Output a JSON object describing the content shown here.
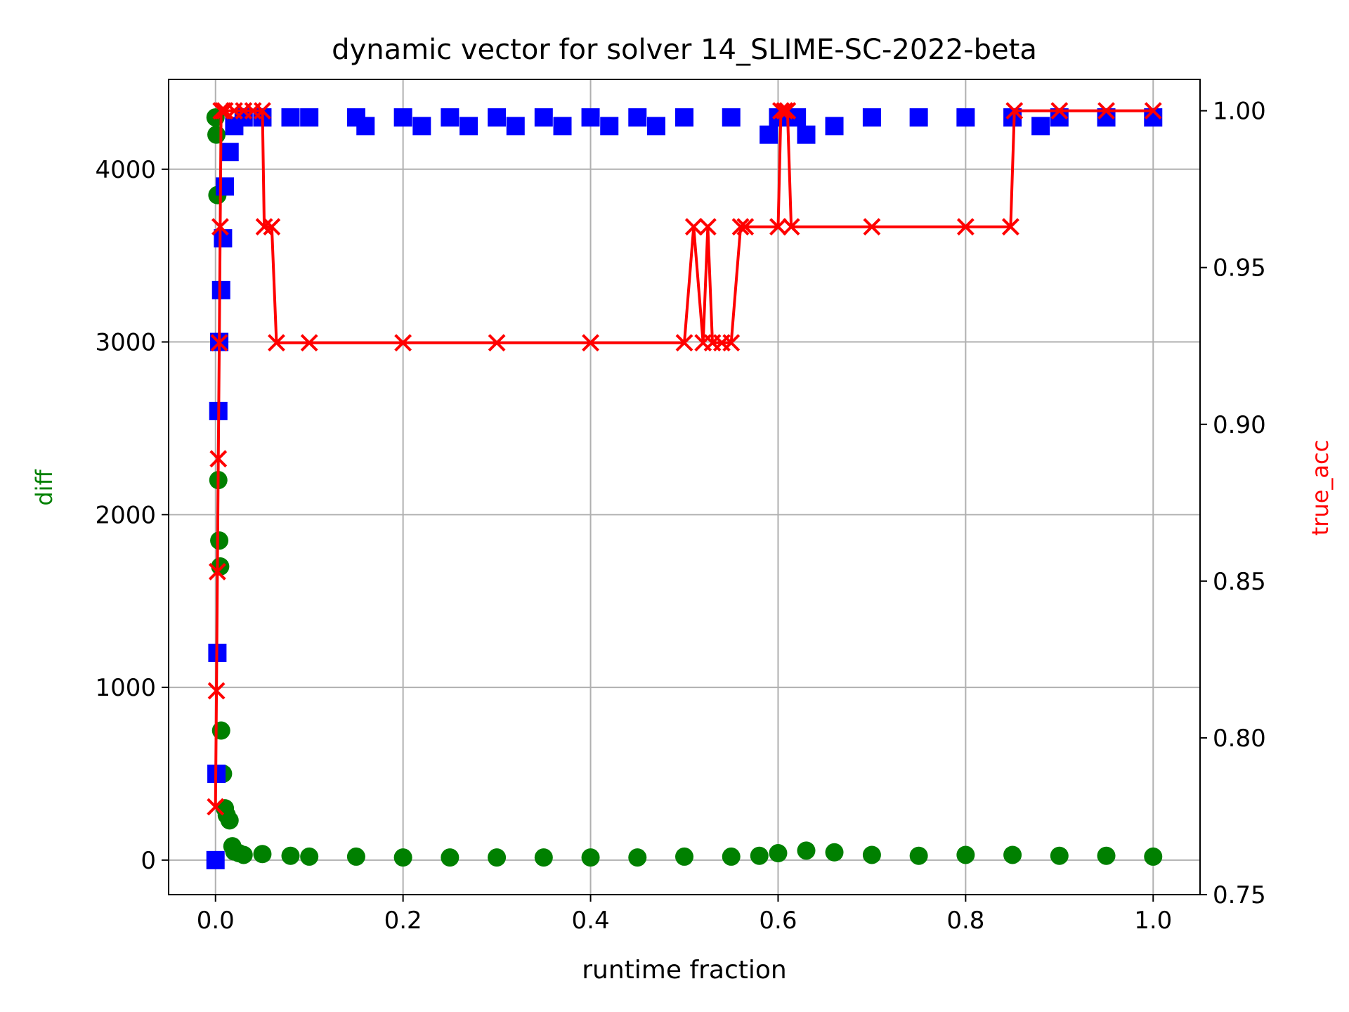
{
  "chart_data": {
    "type": "line",
    "title": "dynamic vector for solver 14_SLIME-SC-2022-beta",
    "xlabel": "runtime fraction",
    "ylabel_left": "diff",
    "ylabel_right": "true_acc",
    "xlim": [
      -0.05,
      1.05
    ],
    "ylim_left": [
      -200,
      4520
    ],
    "ylim_right": [
      0.75,
      1.01
    ],
    "x_ticks": [
      "0.0",
      "0.2",
      "0.4",
      "0.6",
      "0.8",
      "1.0"
    ],
    "y_left_ticks": [
      "0",
      "1000",
      "2000",
      "3000",
      "4000"
    ],
    "y_right_ticks": [
      "0.75",
      "0.80",
      "0.85",
      "0.90",
      "0.95",
      "1.00"
    ],
    "grid": true,
    "colors": {
      "diff": "#008000",
      "squares": "#0000ff",
      "true_acc": "#ff0000"
    },
    "series": [
      {
        "axis": "left",
        "marker": "circle",
        "color": "#008000",
        "x": [
          0.0,
          0.001,
          0.002,
          0.003,
          0.004,
          0.005,
          0.006,
          0.008,
          0.01,
          0.012,
          0.015,
          0.018,
          0.02,
          0.025,
          0.03,
          0.05,
          0.08,
          0.1,
          0.15,
          0.2,
          0.25,
          0.3,
          0.35,
          0.4,
          0.45,
          0.5,
          0.55,
          0.58,
          0.6,
          0.63,
          0.66,
          0.7,
          0.75,
          0.8,
          0.85,
          0.9,
          0.95,
          1.0
        ],
        "y": [
          4300,
          4200,
          3850,
          2200,
          1850,
          1700,
          750,
          500,
          300,
          260,
          230,
          80,
          50,
          40,
          30,
          35,
          25,
          20,
          20,
          15,
          15,
          15,
          15,
          15,
          15,
          20,
          20,
          25,
          40,
          55,
          45,
          30,
          25,
          30,
          30,
          25,
          25,
          20
        ]
      },
      {
        "axis": "left",
        "marker": "square",
        "color": "#0000ff",
        "x": [
          0.0,
          0.001,
          0.002,
          0.003,
          0.004,
          0.006,
          0.008,
          0.01,
          0.015,
          0.02,
          0.03,
          0.05,
          0.08,
          0.1,
          0.15,
          0.16,
          0.2,
          0.22,
          0.25,
          0.27,
          0.3,
          0.32,
          0.35,
          0.37,
          0.4,
          0.42,
          0.45,
          0.47,
          0.5,
          0.55,
          0.59,
          0.6,
          0.62,
          0.63,
          0.66,
          0.7,
          0.75,
          0.8,
          0.85,
          0.88,
          0.9,
          0.95,
          1.0
        ],
        "y": [
          0,
          500,
          1200,
          2600,
          3000,
          3300,
          3600,
          3900,
          4100,
          4250,
          4300,
          4300,
          4300,
          4300,
          4300,
          4250,
          4300,
          4250,
          4300,
          4250,
          4300,
          4250,
          4300,
          4250,
          4300,
          4250,
          4300,
          4250,
          4300,
          4300,
          4200,
          4300,
          4300,
          4200,
          4250,
          4300,
          4300,
          4300,
          4300,
          4250,
          4300,
          4300,
          4300
        ]
      },
      {
        "axis": "right",
        "marker": "x",
        "color": "#ff0000",
        "x": [
          0.0,
          0.001,
          0.002,
          0.003,
          0.004,
          0.005,
          0.006,
          0.008,
          0.01,
          0.02,
          0.03,
          0.04,
          0.05,
          0.052,
          0.06,
          0.065,
          0.1,
          0.2,
          0.3,
          0.4,
          0.5,
          0.51,
          0.52,
          0.525,
          0.53,
          0.54,
          0.55,
          0.56,
          0.565,
          0.6,
          0.603,
          0.607,
          0.61,
          0.614,
          0.7,
          0.8,
          0.848,
          0.852,
          0.9,
          0.95,
          1.0
        ],
        "y": [
          0.778,
          0.815,
          0.853,
          0.889,
          0.926,
          0.963,
          1.0,
          1.0,
          1.0,
          1.0,
          1.0,
          1.0,
          1.0,
          0.963,
          0.963,
          0.926,
          0.926,
          0.926,
          0.926,
          0.926,
          0.926,
          0.963,
          0.926,
          0.963,
          0.926,
          0.926,
          0.926,
          0.963,
          0.963,
          0.963,
          1.0,
          1.0,
          1.0,
          0.963,
          0.963,
          0.963,
          0.963,
          1.0,
          1.0,
          1.0,
          1.0
        ]
      }
    ]
  }
}
